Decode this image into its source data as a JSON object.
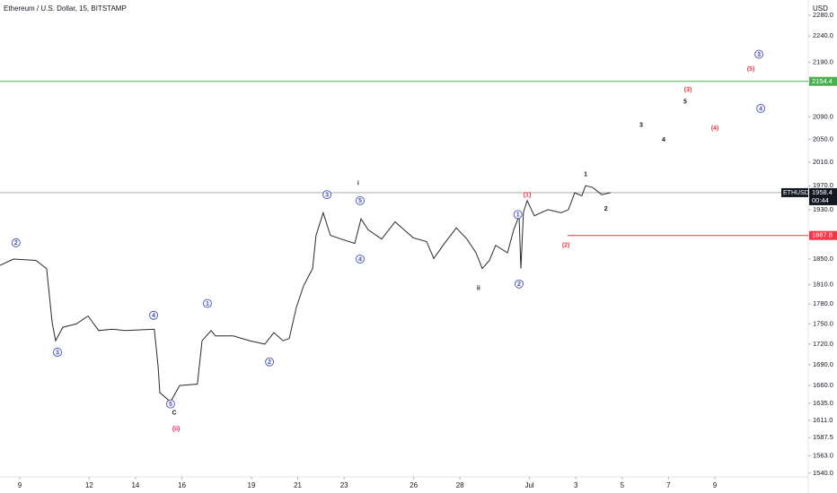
{
  "chart_data": {
    "type": "line",
    "title": "Ethereum / U.S. Dollar, 15, BITSTAMP",
    "unit": "USD",
    "color": "#2a2a2a",
    "log_scale": true,
    "x": [
      -0.85,
      -0.27,
      0.7,
      1.16,
      1.4,
      1.55,
      1.86,
      2.44,
      2.95,
      3.41,
      3.99,
      4.57,
      5.81,
      5.97,
      6.05,
      6.51,
      6.9,
      7.67,
      7.87,
      8.26,
      8.45,
      9.22,
      9.92,
      10.58,
      10.97,
      11.36,
      11.63,
      11.94,
      12.25,
      12.64,
      12.79,
      13.1,
      13.41,
      13.88,
      14.46,
      14.73,
      15.04,
      15.62,
      16.2,
      16.98,
      17.56,
      17.87,
      18.33,
      18.84,
      19.3,
      19.69,
      19.96,
      20.27,
      20.54,
      21.05,
      21.32,
      21.55,
      21.63,
      21.74,
      21.9,
      22.21,
      22.79,
      23.37,
      23.68,
      23.95,
      24.26,
      24.42,
      24.73,
      25.12,
      25.5
    ],
    "values": [
      1840,
      1850,
      1848,
      1835,
      1752,
      1725,
      1745,
      1750,
      1762,
      1740,
      1742,
      1740,
      1742,
      1688,
      1650,
      1637,
      1660,
      1662,
      1725,
      1740,
      1732,
      1732,
      1725,
      1720,
      1737,
      1725,
      1728,
      1775,
      1808,
      1835,
      1888,
      1925,
      1888,
      1882,
      1875,
      1915,
      1897,
      1882,
      1910,
      1884,
      1878,
      1851,
      1875,
      1900,
      1882,
      1860,
      1835,
      1848,
      1872,
      1860,
      1897,
      1920,
      1835,
      1926,
      1945,
      1920,
      1930,
      1925,
      1930,
      1958,
      1953,
      1970,
      1967,
      1955,
      1958.4
    ],
    "xlim": [
      -0.85,
      34.03
    ],
    "xticks": [
      {
        "value": 0,
        "label": "9"
      },
      {
        "value": 3,
        "label": "12"
      },
      {
        "value": 5,
        "label": "14"
      },
      {
        "value": 7,
        "label": "16"
      },
      {
        "value": 10,
        "label": "19"
      },
      {
        "value": 12,
        "label": "21"
      },
      {
        "value": 14,
        "label": "23"
      },
      {
        "value": 17,
        "label": "26"
      },
      {
        "value": 19,
        "label": "28"
      },
      {
        "value": 22,
        "label": "Jul"
      },
      {
        "value": 24,
        "label": "3"
      },
      {
        "value": 26,
        "label": "5"
      },
      {
        "value": 28,
        "label": "7"
      },
      {
        "value": 30,
        "label": "9"
      }
    ],
    "ylim": [
      1535,
      2310
    ],
    "yticks": [
      {
        "value": 2280,
        "label": "2280.0"
      },
      {
        "value": 2240,
        "label": "2240.0"
      },
      {
        "value": 2190,
        "label": "2190.0"
      },
      {
        "value": 2090,
        "label": "2090.0"
      },
      {
        "value": 2050,
        "label": "2050.0"
      },
      {
        "value": 2010,
        "label": "2010.0"
      },
      {
        "value": 1970,
        "label": "1970.0"
      },
      {
        "value": 1930,
        "label": "1930.0"
      },
      {
        "value": 1850,
        "label": "1850.0"
      },
      {
        "value": 1810,
        "label": "1810.0"
      },
      {
        "value": 1780,
        "label": "1780.0"
      },
      {
        "value": 1750,
        "label": "1750.0"
      },
      {
        "value": 1720,
        "label": "1720.0"
      },
      {
        "value": 1690,
        "label": "1690.0"
      },
      {
        "value": 1660,
        "label": "1660.0"
      },
      {
        "value": 1635,
        "label": "1635.0"
      },
      {
        "value": 1611,
        "label": "1611.0"
      },
      1587.5,
      {
        "value": 1563,
        "label": "1563.0"
      },
      {
        "value": 1540,
        "label": "1540.0"
      }
    ],
    "levels": [
      {
        "value": 2154.4,
        "color": "#4caf50"
      },
      {
        "value": 1887.8,
        "color": "#f23645",
        "x_start": 23.64
      }
    ],
    "current": {
      "symbol": "ETHUSD",
      "value": 1958.4,
      "countdown": "00:44"
    },
    "annotations": [
      {
        "text": "2",
        "x": -0.16,
        "y": 1876,
        "color": "#3f4fb8",
        "circle": true
      },
      {
        "text": "3",
        "x": 1.63,
        "y": 1708,
        "color": "#3f4fb8",
        "circle": true
      },
      {
        "text": "4",
        "x": 5.78,
        "y": 1763,
        "color": "#3f4fb8",
        "circle": true
      },
      {
        "text": "5",
        "x": 6.51,
        "y": 1634,
        "color": "#3f4fb8",
        "circle": true
      },
      {
        "text": "C",
        "x": 6.67,
        "y": 1622,
        "color": "#131722",
        "circle": false
      },
      {
        "text": "(ii)",
        "x": 6.75,
        "y": 1600,
        "color": "#e91e63",
        "circle": false
      },
      {
        "text": "1",
        "x": 8.1,
        "y": 1781,
        "color": "#3f4fb8",
        "circle": true
      },
      {
        "text": "2",
        "x": 10.78,
        "y": 1694,
        "color": "#3f4fb8",
        "circle": true
      },
      {
        "text": "3",
        "x": 13.26,
        "y": 1955,
        "color": "#3f4fb8",
        "circle": true
      },
      {
        "text": "i",
        "x": 14.61,
        "y": 1975,
        "color": "#131722",
        "circle": false
      },
      {
        "text": "5",
        "x": 14.69,
        "y": 1945,
        "color": "#3f4fb8",
        "circle": true
      },
      {
        "text": "4",
        "x": 14.69,
        "y": 1850,
        "color": "#3f4fb8",
        "circle": true
      },
      {
        "text": "ii",
        "x": 19.8,
        "y": 1805,
        "color": "#131722",
        "circle": false
      },
      {
        "text": "1",
        "x": 21.5,
        "y": 1922,
        "color": "#3f4fb8",
        "circle": true
      },
      {
        "text": "2",
        "x": 21.55,
        "y": 1811,
        "color": "#3f4fb8",
        "circle": true
      },
      {
        "text": "(1)",
        "x": 21.9,
        "y": 1955,
        "color": "#f23645",
        "circle": false
      },
      {
        "text": "(2)",
        "x": 23.57,
        "y": 1873,
        "color": "#f23645",
        "circle": false
      },
      {
        "text": "1",
        "x": 24.42,
        "y": 1990,
        "color": "#131722",
        "circle": false
      },
      {
        "text": "2",
        "x": 25.3,
        "y": 1932,
        "color": "#131722",
        "circle": false
      },
      {
        "text": "3",
        "x": 26.82,
        "y": 2076,
        "color": "#131722",
        "circle": false
      },
      {
        "text": "4",
        "x": 27.79,
        "y": 2050,
        "color": "#131722",
        "circle": false
      },
      {
        "text": "5",
        "x": 28.72,
        "y": 2118,
        "color": "#131722",
        "circle": false
      },
      {
        "text": "(3)",
        "x": 28.84,
        "y": 2140,
        "color": "#f23645",
        "circle": false
      },
      {
        "text": "(4)",
        "x": 30.0,
        "y": 2070,
        "color": "#f23645",
        "circle": false
      },
      {
        "text": "(5)",
        "x": 31.55,
        "y": 2178,
        "color": "#f23645",
        "circle": false
      },
      {
        "text": "3",
        "x": 31.9,
        "y": 2205,
        "color": "#3f4fb8",
        "circle": true
      },
      {
        "text": "4",
        "x": 31.98,
        "y": 2105,
        "color": "#3f4fb8",
        "circle": true
      }
    ]
  }
}
